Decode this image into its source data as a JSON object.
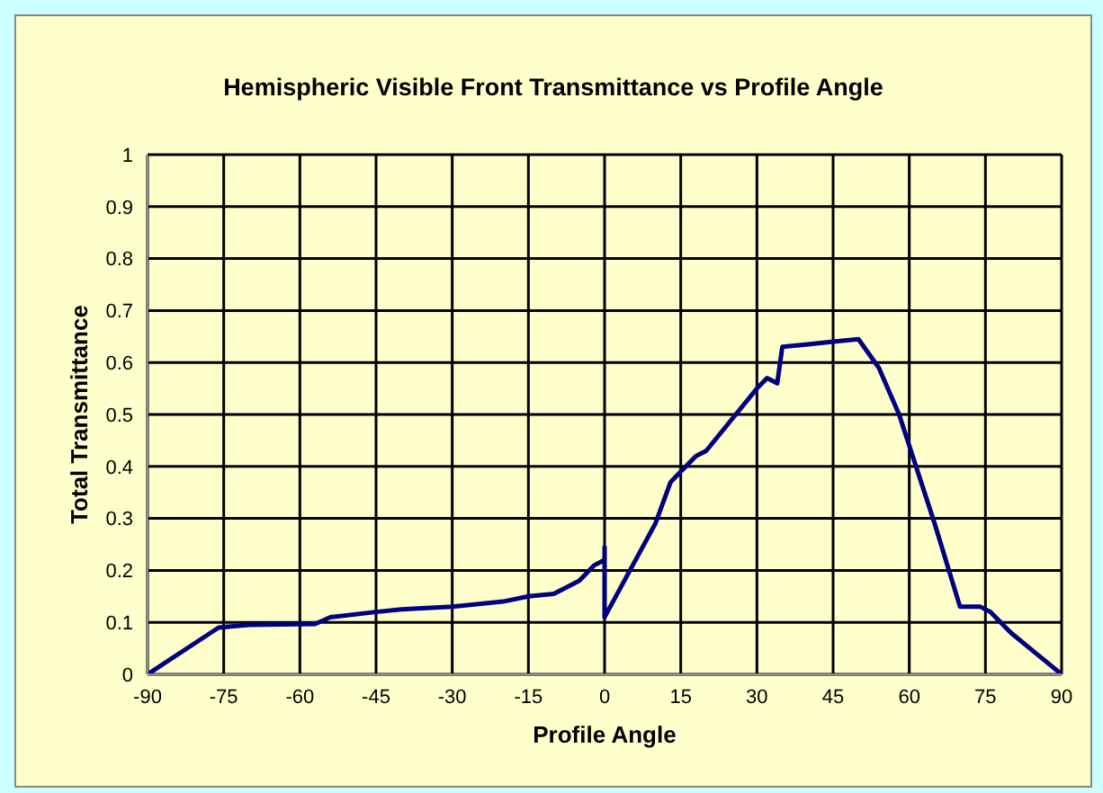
{
  "chart_data": {
    "type": "line",
    "title": "Hemispheric Visible Front Transmittance vs Profile Angle",
    "xlabel": "Profile Angle",
    "ylabel": "Total Transmittance",
    "x": [
      -90,
      -76,
      -70,
      -57,
      -54,
      -45,
      -40,
      -30,
      -20,
      -15,
      -10,
      -5,
      -2,
      0,
      0,
      0,
      5,
      10,
      13,
      15,
      18,
      20,
      25,
      30,
      32,
      34,
      35,
      40,
      45,
      50,
      54,
      58,
      60,
      65,
      70,
      74,
      76,
      80,
      85,
      90
    ],
    "series": [
      {
        "color": "#000080",
        "values": [
          0,
          0.09,
          0.095,
          0.097,
          0.11,
          0.12,
          0.125,
          0.13,
          0.14,
          0.15,
          0.155,
          0.18,
          0.21,
          0.22,
          0.245,
          0.11,
          0.2,
          0.29,
          0.37,
          0.39,
          0.42,
          0.43,
          0.49,
          0.55,
          0.57,
          0.56,
          0.63,
          0.635,
          0.64,
          0.645,
          0.59,
          0.5,
          0.44,
          0.29,
          0.13,
          0.13,
          0.12,
          0.08,
          0.04,
          0
        ]
      }
    ],
    "xlim": [
      -90,
      90
    ],
    "xticks": [
      -90,
      -75,
      -60,
      -45,
      -30,
      -15,
      0,
      15,
      30,
      45,
      60,
      75,
      90
    ],
    "ylim": [
      0,
      1
    ],
    "yticks": [
      0,
      0.1,
      0.2,
      0.3,
      0.4,
      0.5,
      0.6,
      0.7,
      0.8,
      0.9,
      1
    ],
    "grid": true,
    "legend": false,
    "marker": "none",
    "line_style": "solid"
  }
}
